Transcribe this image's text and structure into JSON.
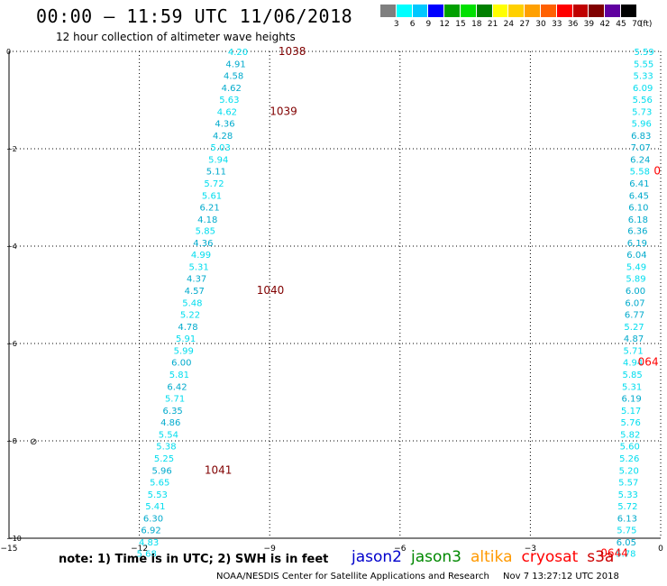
{
  "header": {
    "title": "00:00 – 11:59 UTC 11/06/2018",
    "subtitle": "12 hour collection of altimeter wave heights"
  },
  "colorbar": {
    "labels": [
      "3",
      "6",
      "9",
      "12",
      "15",
      "18",
      "21",
      "24",
      "27",
      "30",
      "33",
      "36",
      "39",
      "42",
      "45",
      "70",
      "(ft)"
    ],
    "colors": [
      "#7f7f7f",
      "#00ffff",
      "#00c8ff",
      "#0000ff",
      "#00a000",
      "#00e000",
      "#008000",
      "#ffff00",
      "#ffd000",
      "#ffa000",
      "#ff6000",
      "#ff0000",
      "#c00000",
      "#800000",
      "#6000a0",
      "#000000"
    ]
  },
  "footer": {
    "note": "note: 1) Time is in UTC; 2) SWH is in feet",
    "missions": [
      {
        "name": "jason2",
        "color": "#0000cc"
      },
      {
        "name": "jason3",
        "color": "#008800"
      },
      {
        "name": "altika",
        "color": "#ff9900"
      },
      {
        "name": "cryosat",
        "color": "#ff0000"
      },
      {
        "name": "s3a",
        "color": "#cc0000"
      }
    ],
    "credit": "NOAA/NESDIS Center for Satellite Applications and Research",
    "timestamp": "Nov  7 13:27:12 UTC 2018"
  },
  "chart_data": {
    "type": "scatter",
    "xlim": [
      -15,
      0
    ],
    "ylim": [
      -10,
      0
    ],
    "x_ticks": [
      -15,
      -12,
      -9,
      -6,
      -3,
      0
    ],
    "y_ticks": [
      0,
      -2,
      -4,
      -6,
      -8,
      -10
    ],
    "x_tick_labels": [
      "−15",
      "−12",
      "−9",
      "−6",
      "−3",
      "0"
    ],
    "y_tick_labels": [
      "0",
      "−2",
      "−4",
      "−6",
      "−8",
      "−10"
    ],
    "grid": true,
    "colors": {
      "light": "#00ddee",
      "mid": "#00aacc",
      "time": "#800000",
      "time_right": "#ff0000"
    },
    "series": [
      {
        "points": [
          {
            "x": -9.5,
            "y": 0.0,
            "v": "4.20",
            "c": "light"
          },
          {
            "x": -9.55,
            "y": -0.25,
            "v": "4.91",
            "c": "mid"
          },
          {
            "x": -9.6,
            "y": -0.49,
            "v": "4.58",
            "c": "mid"
          },
          {
            "x": -9.65,
            "y": -0.74,
            "v": "4.62",
            "c": "mid"
          },
          {
            "x": -9.7,
            "y": -0.98,
            "v": "5.63",
            "c": "light"
          },
          {
            "x": -9.75,
            "y": -1.23,
            "v": "4.62",
            "c": "light"
          },
          {
            "x": -9.8,
            "y": -1.47,
            "v": "4.36",
            "c": "mid"
          },
          {
            "x": -9.85,
            "y": -1.72,
            "v": "4.28",
            "c": "mid"
          },
          {
            "x": -9.9,
            "y": -1.96,
            "v": "5.03",
            "c": "light"
          },
          {
            "x": -9.95,
            "y": -2.21,
            "v": "5.94",
            "c": "light"
          },
          {
            "x": -10.0,
            "y": -2.45,
            "v": "5.11",
            "c": "mid"
          },
          {
            "x": -10.05,
            "y": -2.7,
            "v": "5.72",
            "c": "light"
          },
          {
            "x": -10.1,
            "y": -2.95,
            "v": "5.61",
            "c": "light"
          },
          {
            "x": -10.15,
            "y": -3.19,
            "v": "6.21",
            "c": "mid"
          },
          {
            "x": -10.2,
            "y": -3.44,
            "v": "4.18",
            "c": "mid"
          },
          {
            "x": -10.25,
            "y": -3.68,
            "v": "5.85",
            "c": "light"
          },
          {
            "x": -10.3,
            "y": -3.93,
            "v": "4.36",
            "c": "mid"
          },
          {
            "x": -10.35,
            "y": -4.17,
            "v": "4.99",
            "c": "light"
          },
          {
            "x": -10.4,
            "y": -4.42,
            "v": "5.31",
            "c": "light"
          },
          {
            "x": -10.45,
            "y": -4.66,
            "v": "4.37",
            "c": "mid"
          },
          {
            "x": -10.5,
            "y": -4.91,
            "v": "4.57",
            "c": "mid"
          },
          {
            "x": -10.55,
            "y": -5.16,
            "v": "5.48",
            "c": "light"
          },
          {
            "x": -10.6,
            "y": -5.4,
            "v": "5.22",
            "c": "light"
          },
          {
            "x": -10.65,
            "y": -5.65,
            "v": "4.78",
            "c": "mid"
          },
          {
            "x": -10.7,
            "y": -5.89,
            "v": "5.91",
            "c": "light"
          },
          {
            "x": -10.75,
            "y": -6.14,
            "v": "5.99",
            "c": "light"
          },
          {
            "x": -10.8,
            "y": -6.38,
            "v": "6.00",
            "c": "mid"
          },
          {
            "x": -10.85,
            "y": -6.63,
            "v": "5.81",
            "c": "light"
          },
          {
            "x": -10.9,
            "y": -6.88,
            "v": "6.42",
            "c": "mid"
          },
          {
            "x": -10.95,
            "y": -7.12,
            "v": "5.71",
            "c": "light"
          },
          {
            "x": -11.0,
            "y": -7.37,
            "v": "6.35",
            "c": "mid"
          },
          {
            "x": -11.05,
            "y": -7.61,
            "v": "4.86",
            "c": "mid"
          },
          {
            "x": -11.1,
            "y": -7.86,
            "v": "5.54",
            "c": "light"
          },
          {
            "x": -11.15,
            "y": -8.1,
            "v": "5.38",
            "c": "light"
          },
          {
            "x": -11.2,
            "y": -8.35,
            "v": "5.25",
            "c": "light"
          },
          {
            "x": -11.25,
            "y": -8.6,
            "v": "5.96",
            "c": "mid"
          },
          {
            "x": -11.3,
            "y": -8.84,
            "v": "5.65",
            "c": "light"
          },
          {
            "x": -11.35,
            "y": -9.09,
            "v": "5.53",
            "c": "light"
          },
          {
            "x": -11.4,
            "y": -9.33,
            "v": "5.41",
            "c": "light"
          },
          {
            "x": -11.45,
            "y": -9.58,
            "v": "6.30",
            "c": "mid"
          },
          {
            "x": -11.5,
            "y": -9.82,
            "v": "6.92",
            "c": "mid"
          },
          {
            "x": -11.55,
            "y": -10.07,
            "v": "4.83",
            "c": "light"
          },
          {
            "x": -11.6,
            "y": -10.31,
            "v": "5.68",
            "c": "light"
          }
        ],
        "times": [
          {
            "x": -8.8,
            "y": 0.0,
            "t": "1038"
          },
          {
            "x": -9.0,
            "y": -1.23,
            "t": "1039"
          },
          {
            "x": -9.3,
            "y": -4.91,
            "t": "1040"
          },
          {
            "x": -10.5,
            "y": -8.6,
            "t": "1041"
          }
        ],
        "time_color": "time"
      },
      {
        "points": [
          {
            "x": -0.15,
            "y": 0.0,
            "v": "5.59",
            "c": "light"
          },
          {
            "x": -0.16,
            "y": -0.25,
            "v": "5.55",
            "c": "light"
          },
          {
            "x": -0.17,
            "y": -0.49,
            "v": "5.33",
            "c": "light"
          },
          {
            "x": -0.18,
            "y": -0.74,
            "v": "6.09",
            "c": "light"
          },
          {
            "x": -0.19,
            "y": -0.98,
            "v": "5.56",
            "c": "light"
          },
          {
            "x": -0.2,
            "y": -1.23,
            "v": "5.73",
            "c": "light"
          },
          {
            "x": -0.21,
            "y": -1.47,
            "v": "5.96",
            "c": "light"
          },
          {
            "x": -0.22,
            "y": -1.72,
            "v": "6.83",
            "c": "mid"
          },
          {
            "x": -0.23,
            "y": -1.96,
            "v": "7.07",
            "c": "mid"
          },
          {
            "x": -0.24,
            "y": -2.21,
            "v": "6.24",
            "c": "mid"
          },
          {
            "x": -0.25,
            "y": -2.45,
            "v": "5.58",
            "c": "light"
          },
          {
            "x": -0.26,
            "y": -2.7,
            "v": "6.41",
            "c": "mid"
          },
          {
            "x": -0.27,
            "y": -2.95,
            "v": "6.45",
            "c": "mid"
          },
          {
            "x": -0.28,
            "y": -3.19,
            "v": "6.10",
            "c": "mid"
          },
          {
            "x": -0.29,
            "y": -3.44,
            "v": "6.18",
            "c": "mid"
          },
          {
            "x": -0.3,
            "y": -3.68,
            "v": "6.36",
            "c": "mid"
          },
          {
            "x": -0.31,
            "y": -3.93,
            "v": "6.19",
            "c": "mid"
          },
          {
            "x": -0.32,
            "y": -4.17,
            "v": "6.04",
            "c": "mid"
          },
          {
            "x": -0.33,
            "y": -4.42,
            "v": "5.49",
            "c": "light"
          },
          {
            "x": -0.34,
            "y": -4.66,
            "v": "5.89",
            "c": "light"
          },
          {
            "x": -0.35,
            "y": -4.91,
            "v": "6.00",
            "c": "mid"
          },
          {
            "x": -0.36,
            "y": -5.16,
            "v": "6.07",
            "c": "mid"
          },
          {
            "x": -0.37,
            "y": -5.4,
            "v": "6.77",
            "c": "mid"
          },
          {
            "x": -0.38,
            "y": -5.65,
            "v": "5.27",
            "c": "light"
          },
          {
            "x": -0.39,
            "y": -5.89,
            "v": "4.87",
            "c": "mid"
          },
          {
            "x": -0.4,
            "y": -6.14,
            "v": "5.71",
            "c": "light"
          },
          {
            "x": -0.41,
            "y": -6.38,
            "v": "4.94",
            "c": "light"
          },
          {
            "x": -0.42,
            "y": -6.63,
            "v": "5.85",
            "c": "light"
          },
          {
            "x": -0.43,
            "y": -6.88,
            "v": "5.31",
            "c": "light"
          },
          {
            "x": -0.44,
            "y": -7.12,
            "v": "6.19",
            "c": "mid"
          },
          {
            "x": -0.45,
            "y": -7.37,
            "v": "5.17",
            "c": "light"
          },
          {
            "x": -0.46,
            "y": -7.61,
            "v": "5.76",
            "c": "light"
          },
          {
            "x": -0.47,
            "y": -7.86,
            "v": "5.82",
            "c": "light"
          },
          {
            "x": -0.48,
            "y": -8.1,
            "v": "5.60",
            "c": "light"
          },
          {
            "x": -0.49,
            "y": -8.35,
            "v": "5.26",
            "c": "light"
          },
          {
            "x": -0.5,
            "y": -8.6,
            "v": "5.20",
            "c": "light"
          },
          {
            "x": -0.51,
            "y": -8.84,
            "v": "5.57",
            "c": "light"
          },
          {
            "x": -0.52,
            "y": -9.09,
            "v": "5.33",
            "c": "light"
          },
          {
            "x": -0.53,
            "y": -9.33,
            "v": "5.72",
            "c": "light"
          },
          {
            "x": -0.54,
            "y": -9.58,
            "v": "6.13",
            "c": "mid"
          },
          {
            "x": -0.55,
            "y": -9.82,
            "v": "5.75",
            "c": "light"
          },
          {
            "x": -0.56,
            "y": -10.07,
            "v": "6.05",
            "c": "mid"
          },
          {
            "x": -0.57,
            "y": -10.31,
            "v": "5.78",
            "c": "light"
          }
        ],
        "times": [
          {
            "x": 0.0,
            "y": -2.45,
            "t": "0"
          },
          {
            "x": -0.05,
            "y": -6.38,
            "t": "064"
          },
          {
            "x": -0.75,
            "y": -10.31,
            "t": "0644"
          }
        ],
        "time_color": "time_right"
      }
    ]
  }
}
